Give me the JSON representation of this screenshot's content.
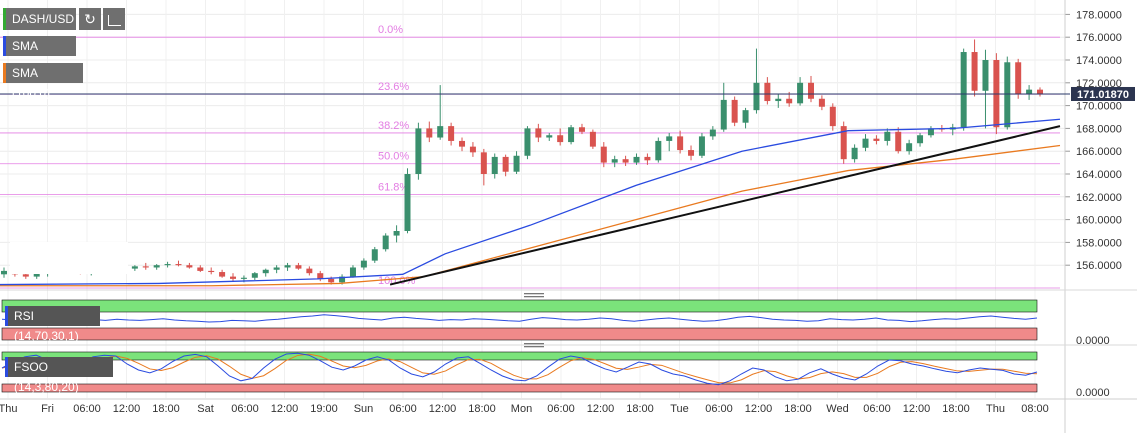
{
  "toolbar": {
    "symbol": "DASH/USD",
    "refresh_icon": "refresh-icon",
    "bars_icon": "bar-chart-icon"
  },
  "indicators": {
    "sma50": "SMA (50,0)",
    "sma100": "SMA (100,0)",
    "rsi": "RSI (14,70,30,1)",
    "fsoo": "FSOO (14,3,80,20)"
  },
  "price_badge": "171.01870",
  "fib_labels": [
    "0.0%",
    "23.6%",
    "38.2%",
    "50.0%",
    "61.8%",
    "100.0%"
  ],
  "colors": {
    "up": "#3a8f6d",
    "down": "#d9534f",
    "sma50": "#2a4be0",
    "sma100": "#e97a20",
    "fib": "#e37de3",
    "overbought": "#7be37b",
    "oversold": "#f08a8a"
  },
  "chart_data": {
    "type": "candlestick",
    "main": {
      "y_ticks": [
        "178.0000",
        "176.0000",
        "174.0000",
        "172.0000",
        "170.0000",
        "168.0000",
        "166.0000",
        "164.0000",
        "162.0000",
        "160.0000",
        "158.0000",
        "156.0000"
      ],
      "ylim": [
        154.0,
        179.0
      ],
      "last_price": 171.0187,
      "fib_levels": [
        {
          "label": "0.0%",
          "value": 176.0
        },
        {
          "label": "23.6%",
          "value": 171.0
        },
        {
          "label": "38.2%",
          "value": 167.6
        },
        {
          "label": "50.0%",
          "value": 164.9
        },
        {
          "label": "61.8%",
          "value": 162.2
        },
        {
          "label": "100.0%",
          "value": 154.0
        }
      ],
      "trendline": [
        [
          0.368,
          154.3
        ],
        [
          1.0,
          168.2
        ]
      ],
      "sma50": [
        [
          0,
          154.3
        ],
        [
          0.15,
          154.4
        ],
        [
          0.3,
          154.8
        ],
        [
          0.38,
          155.2
        ],
        [
          0.42,
          157.0
        ],
        [
          0.5,
          159.5
        ],
        [
          0.6,
          163.0
        ],
        [
          0.7,
          166.0
        ],
        [
          0.8,
          167.8
        ],
        [
          0.9,
          168.0
        ],
        [
          1.0,
          168.8
        ]
      ],
      "sma100": [
        [
          0,
          154.2
        ],
        [
          0.2,
          154.2
        ],
        [
          0.32,
          154.4
        ],
        [
          0.4,
          155.0
        ],
        [
          0.5,
          157.5
        ],
        [
          0.6,
          160.0
        ],
        [
          0.7,
          162.5
        ],
        [
          0.8,
          164.3
        ],
        [
          0.9,
          165.3
        ],
        [
          1.0,
          166.5
        ]
      ],
      "candles": [
        [
          155.2,
          155.8,
          154.9,
          155.5
        ],
        [
          155.5,
          156.0,
          155.0,
          155.2
        ],
        [
          155.2,
          155.4,
          154.8,
          155.0
        ],
        [
          155.0,
          155.6,
          154.8,
          155.4
        ],
        [
          155.4,
          155.9,
          155.0,
          155.7
        ],
        [
          155.7,
          156.2,
          155.4,
          155.9
        ],
        [
          155.9,
          156.1,
          155.5,
          155.6
        ],
        [
          155.6,
          155.8,
          155.2,
          155.4
        ],
        [
          155.4,
          155.7,
          155.1,
          155.5
        ],
        [
          155.5,
          155.9,
          155.3,
          155.8
        ],
        [
          155.8,
          156.0,
          155.5,
          155.6
        ],
        [
          155.6,
          155.9,
          155.4,
          155.7
        ],
        [
          155.7,
          156.0,
          155.5,
          155.9
        ],
        [
          155.9,
          156.2,
          155.6,
          155.8
        ],
        [
          155.8,
          156.1,
          155.6,
          156.0
        ],
        [
          156.0,
          156.3,
          155.8,
          156.1
        ],
        [
          156.1,
          156.4,
          155.9,
          156.0
        ],
        [
          156.0,
          156.2,
          155.7,
          155.8
        ],
        [
          155.8,
          156.0,
          155.4,
          155.5
        ],
        [
          155.5,
          155.8,
          155.2,
          155.4
        ],
        [
          155.4,
          155.6,
          154.9,
          155.0
        ],
        [
          155.0,
          155.3,
          154.6,
          154.8
        ],
        [
          154.8,
          155.1,
          154.5,
          154.9
        ],
        [
          154.9,
          155.4,
          154.7,
          155.3
        ],
        [
          155.3,
          155.7,
          155.0,
          155.6
        ],
        [
          155.6,
          156.0,
          155.3,
          155.8
        ],
        [
          155.8,
          156.2,
          155.5,
          156.0
        ],
        [
          156.0,
          156.2,
          155.6,
          155.7
        ],
        [
          155.7,
          155.9,
          155.1,
          155.3
        ],
        [
          155.3,
          155.5,
          154.6,
          154.8
        ],
        [
          154.8,
          155.0,
          154.3,
          154.5
        ],
        [
          154.5,
          155.2,
          154.3,
          155.0
        ],
        [
          155.0,
          156.0,
          154.9,
          155.8
        ],
        [
          155.8,
          156.6,
          155.6,
          156.4
        ],
        [
          156.4,
          157.6,
          156.2,
          157.4
        ],
        [
          157.4,
          158.8,
          157.2,
          158.6
        ],
        [
          158.6,
          159.5,
          158.0,
          159.0
        ],
        [
          159.0,
          164.5,
          158.8,
          164.0
        ],
        [
          164.0,
          168.5,
          163.5,
          168.0
        ],
        [
          168.0,
          168.6,
          166.8,
          167.2
        ],
        [
          167.2,
          171.8,
          167.0,
          168.2
        ],
        [
          168.2,
          168.5,
          166.5,
          166.9
        ],
        [
          166.9,
          167.2,
          166.0,
          166.4
        ],
        [
          166.4,
          166.8,
          165.5,
          165.9
        ],
        [
          165.9,
          166.2,
          163.0,
          164.0
        ],
        [
          164.0,
          165.8,
          163.6,
          165.5
        ],
        [
          165.5,
          165.7,
          163.8,
          164.2
        ],
        [
          164.2,
          166.0,
          164.0,
          165.6
        ],
        [
          165.6,
          168.2,
          165.3,
          168.0
        ],
        [
          168.0,
          168.4,
          166.8,
          167.2
        ],
        [
          167.2,
          167.6,
          166.9,
          167.4
        ],
        [
          167.4,
          168.0,
          166.5,
          166.8
        ],
        [
          166.8,
          168.3,
          166.6,
          168.1
        ],
        [
          168.1,
          168.4,
          167.5,
          167.7
        ],
        [
          167.7,
          167.9,
          166.2,
          166.4
        ],
        [
          166.4,
          166.8,
          164.6,
          165.0
        ],
        [
          165.0,
          165.6,
          164.6,
          165.3
        ],
        [
          165.3,
          165.6,
          164.7,
          165.0
        ],
        [
          165.0,
          165.8,
          164.8,
          165.5
        ],
        [
          165.5,
          165.8,
          164.8,
          165.2
        ],
        [
          165.2,
          167.2,
          165.0,
          166.9
        ],
        [
          166.9,
          167.6,
          166.0,
          167.3
        ],
        [
          167.3,
          167.8,
          165.8,
          166.1
        ],
        [
          166.1,
          166.5,
          165.2,
          165.6
        ],
        [
          165.6,
          167.6,
          165.4,
          167.3
        ],
        [
          167.3,
          168.2,
          167.0,
          167.9
        ],
        [
          167.9,
          172.0,
          167.7,
          170.5
        ],
        [
          170.5,
          170.8,
          168.2,
          168.5
        ],
        [
          168.5,
          169.8,
          168.0,
          169.6
        ],
        [
          169.6,
          175.0,
          169.3,
          172.0
        ],
        [
          172.0,
          172.5,
          170.1,
          170.4
        ],
        [
          170.4,
          171.0,
          169.8,
          170.6
        ],
        [
          170.6,
          171.2,
          169.9,
          170.2
        ],
        [
          170.2,
          172.5,
          170.0,
          172.0
        ],
        [
          172.0,
          172.6,
          170.3,
          170.6
        ],
        [
          170.6,
          170.9,
          169.6,
          169.9
        ],
        [
          169.9,
          170.2,
          167.8,
          168.2
        ],
        [
          168.2,
          168.6,
          164.9,
          165.3
        ],
        [
          165.3,
          166.6,
          165.0,
          166.3
        ],
        [
          166.3,
          167.5,
          166.0,
          167.1
        ],
        [
          167.1,
          167.4,
          166.6,
          166.9
        ],
        [
          166.9,
          168.0,
          166.5,
          167.7
        ],
        [
          167.7,
          168.1,
          165.8,
          166.0
        ],
        [
          166.0,
          167.0,
          165.7,
          166.7
        ],
        [
          166.7,
          167.6,
          166.4,
          167.4
        ],
        [
          167.4,
          168.2,
          167.2,
          168.0
        ],
        [
          168.0,
          168.3,
          167.7,
          167.9
        ],
        [
          167.9,
          168.4,
          167.4,
          168.1
        ],
        [
          168.1,
          175.0,
          167.8,
          174.7
        ],
        [
          174.7,
          175.8,
          170.8,
          171.3
        ],
        [
          171.3,
          174.9,
          168.0,
          174.0
        ],
        [
          174.0,
          174.6,
          167.5,
          168.1
        ],
        [
          168.1,
          174.3,
          167.9,
          173.8
        ],
        [
          173.8,
          174.1,
          170.6,
          171.0
        ],
        [
          171.0,
          171.8,
          170.5,
          171.4
        ],
        [
          171.4,
          171.6,
          170.8,
          171.0
        ]
      ]
    },
    "rsi": {
      "y_ticks": [
        "0.0000"
      ],
      "levels": {
        "overbought": 70,
        "oversold": 30
      },
      "values": [
        52,
        50,
        48,
        49,
        51,
        50,
        47,
        48,
        51,
        49,
        52,
        50,
        49,
        51,
        53,
        50,
        48,
        47,
        45,
        46,
        49,
        48,
        47,
        50,
        52,
        55,
        58,
        60,
        63,
        61,
        58,
        54,
        52,
        50,
        55,
        57,
        54,
        52,
        49,
        51,
        50,
        53,
        52,
        50,
        48,
        47,
        52,
        56,
        54,
        51,
        50,
        52,
        55,
        53,
        49,
        47,
        50,
        53,
        55,
        52,
        49,
        47,
        48,
        52,
        57,
        59,
        56,
        52,
        50,
        49,
        47,
        48,
        53,
        51,
        50,
        52,
        55,
        50,
        49,
        46,
        48,
        51,
        53,
        52,
        55,
        58,
        60,
        57,
        54,
        52,
        55
      ]
    },
    "fsoo": {
      "y_ticks": [
        "0.0000"
      ],
      "levels": {
        "overbought": 80,
        "oversold": 20
      },
      "k": [
        60,
        75,
        88,
        92,
        80,
        65,
        55,
        72,
        88,
        92,
        90,
        70,
        55,
        48,
        58,
        76,
        90,
        94,
        88,
        65,
        40,
        28,
        34,
        60,
        82,
        95,
        97,
        92,
        78,
        62,
        55,
        65,
        80,
        88,
        80,
        60,
        45,
        38,
        50,
        70,
        85,
        88,
        72,
        55,
        40,
        30,
        28,
        40,
        62,
        82,
        90,
        85,
        70,
        58,
        50,
        62,
        75,
        70,
        55,
        45,
        40,
        30,
        22,
        18,
        28,
        45,
        60,
        55,
        38,
        28,
        32,
        48,
        58,
        45,
        35,
        30,
        45,
        65,
        80,
        78,
        70,
        65,
        58,
        52,
        48,
        55,
        60,
        57,
        54,
        45,
        42,
        50
      ]
    },
    "x_ticks": [
      "Thu",
      "Fri",
      "06:00",
      "12:00",
      "18:00",
      "Sat",
      "06:00",
      "12:00",
      "19:00",
      "Sun",
      "06:00",
      "12:00",
      "18:00",
      "Mon",
      "06:00",
      "12:00",
      "18:00",
      "Tue",
      "06:00",
      "12:00",
      "18:00",
      "Wed",
      "06:00",
      "12:00",
      "18:00",
      "Thu",
      "08:00"
    ]
  }
}
